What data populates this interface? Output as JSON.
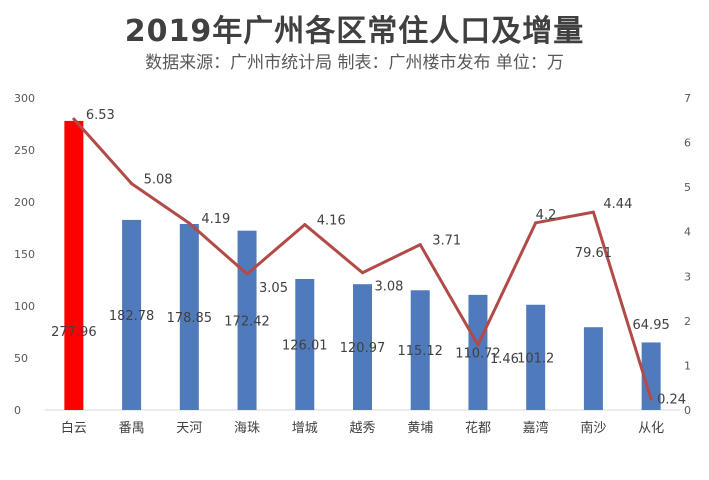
{
  "chart_data": {
    "type": "bar",
    "title": "2019年广州各区常住人口及增量",
    "subtitle": "数据来源：广州市统计局   制表：广州楼市发布  单位：万",
    "categories": [
      "白云",
      "番禺",
      "天河",
      "海珠",
      "增城",
      "越秀",
      "黄埔",
      "花都",
      "嘉湾",
      "南沙",
      "从化"
    ],
    "series": [
      {
        "values": [
          277.96,
          182.78,
          178.85,
          172.42,
          126.01,
          120.97,
          115.12,
          110.72,
          101.2,
          79.61,
          64.95
        ],
        "type": "bar",
        "axis": "left",
        "color": "#4f7bbd",
        "highlight_color": "#ff0000",
        "highlight_index": 0
      },
      {
        "values": [
          6.53,
          5.08,
          4.19,
          3.05,
          4.16,
          3.08,
          3.71,
          1.46,
          4.2,
          4.44,
          0.24
        ],
        "type": "line",
        "axis": "right",
        "color": "#b24a48"
      }
    ],
    "bar_labels": [
      "277.96",
      "182.78",
      "178.85",
      "172.42",
      "126.01",
      "120.97",
      "115.12",
      "110.72",
      "101.2",
      "79.61",
      "64.95"
    ],
    "line_labels": [
      "6.53",
      "5.08",
      "4.19",
      "3.05",
      "4.16",
      "3.08",
      "3.71",
      "1.46",
      "4.2",
      "4.44",
      "0.24"
    ],
    "ylim_left": [
      0,
      300
    ],
    "yticks_left": [
      "0",
      "50",
      "100",
      "150",
      "200",
      "250",
      "300"
    ],
    "ylim_right": [
      0,
      7
    ],
    "yticks_right": [
      "0",
      "1",
      "2",
      "3",
      "4",
      "5",
      "6",
      "7"
    ],
    "grid": false,
    "legend": "none"
  }
}
